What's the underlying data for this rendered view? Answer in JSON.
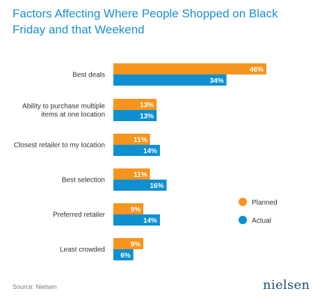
{
  "chart_data": {
    "type": "bar",
    "orientation": "horizontal",
    "title": "Factors Affecting Where People Shopped on Black Friday and that Weekend",
    "categories": [
      "Best deals",
      "Ability to purchase multiple items at one location",
      "Closest retailer to my location",
      "Best selection",
      "Preferred retailer",
      "Least crowded"
    ],
    "category_lines": [
      [
        "Best deals"
      ],
      [
        "Ability to purchase multiple",
        "items at one location"
      ],
      [
        "Closest retailer to my location"
      ],
      [
        "Best selection"
      ],
      [
        "Preferred retailer"
      ],
      [
        "Least crowded"
      ]
    ],
    "series": [
      {
        "name": "Planned",
        "color": "#f7941d",
        "values": [
          46,
          13,
          11,
          11,
          9,
          9
        ],
        "labels": [
          "46%",
          "13%",
          "11%",
          "11%",
          "9%",
          "9%"
        ]
      },
      {
        "name": "Actual",
        "color": "#0d8fd2",
        "values": [
          34,
          13,
          14,
          16,
          14,
          6
        ],
        "labels": [
          "34%",
          "13%",
          "14%",
          "16%",
          "14%",
          "6%"
        ]
      }
    ],
    "xlim": [
      0,
      46
    ],
    "grid": false,
    "legend_position": "right"
  },
  "source": "Source: Nielsen",
  "brand": "nielsen"
}
